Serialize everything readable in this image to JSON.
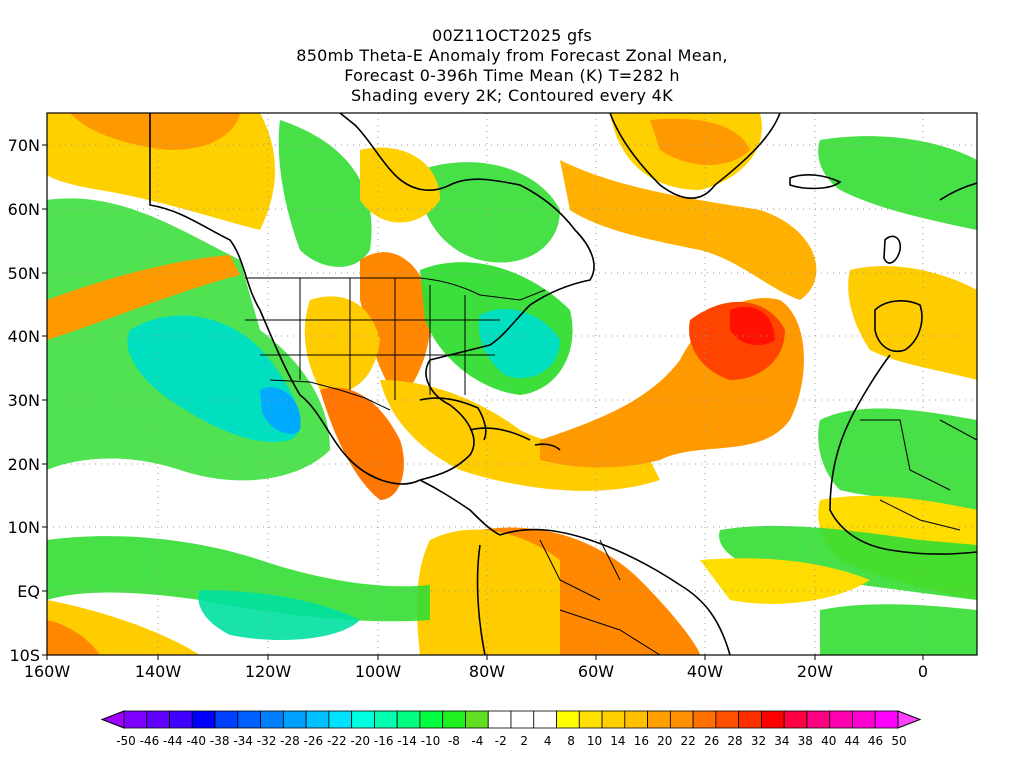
{
  "header": {
    "line1": "00Z11OCT2025 gfs",
    "line2": "850mb Theta-E Anomaly from Forecast Zonal Mean,",
    "line3": "Forecast 0-396h Time Mean (K) T=282 h",
    "line4": "Shading every 2K; Contoured every 4K"
  },
  "map": {
    "lat_labels": [
      "70N",
      "60N",
      "50N",
      "40N",
      "30N",
      "20N",
      "10N",
      "EQ",
      "10S"
    ],
    "lon_labels": [
      "160W",
      "140W",
      "120W",
      "100W",
      "80W",
      "60W",
      "40W",
      "20W",
      "0"
    ],
    "extent": {
      "lon_min": -160,
      "lon_max": 10,
      "lat_min": -10,
      "lat_max": 75
    },
    "gridlines": "dotted"
  },
  "colorbar": {
    "labels": [
      "-50",
      "-46",
      "-44",
      "-40",
      "-38",
      "-34",
      "-32",
      "-28",
      "-26",
      "-22",
      "-20",
      "-16",
      "-14",
      "-10",
      "-8",
      "-4",
      "-2",
      "2",
      "4",
      "8",
      "10",
      "14",
      "16",
      "20",
      "22",
      "26",
      "28",
      "32",
      "34",
      "38",
      "40",
      "44",
      "46",
      "50"
    ],
    "colors": [
      "#a000ff",
      "#8000ff",
      "#6000ff",
      "#4000ff",
      "#0000ff",
      "#0040ff",
      "#0060ff",
      "#0080ff",
      "#00a0ff",
      "#00c0ff",
      "#00e0ff",
      "#00ffe0",
      "#00ffb0",
      "#00ff80",
      "#00ff40",
      "#20f020",
      "#60e020",
      "#ffffff",
      "#ffffff",
      "#ffffff",
      "#ffff00",
      "#ffe000",
      "#ffd000",
      "#ffc000",
      "#ffa000",
      "#ff9000",
      "#ff7000",
      "#ff5000",
      "#ff3000",
      "#ff0000",
      "#ff0040",
      "#ff0080",
      "#ff00b0",
      "#ff00d0",
      "#ff00ff",
      "#ff40ff"
    ]
  }
}
